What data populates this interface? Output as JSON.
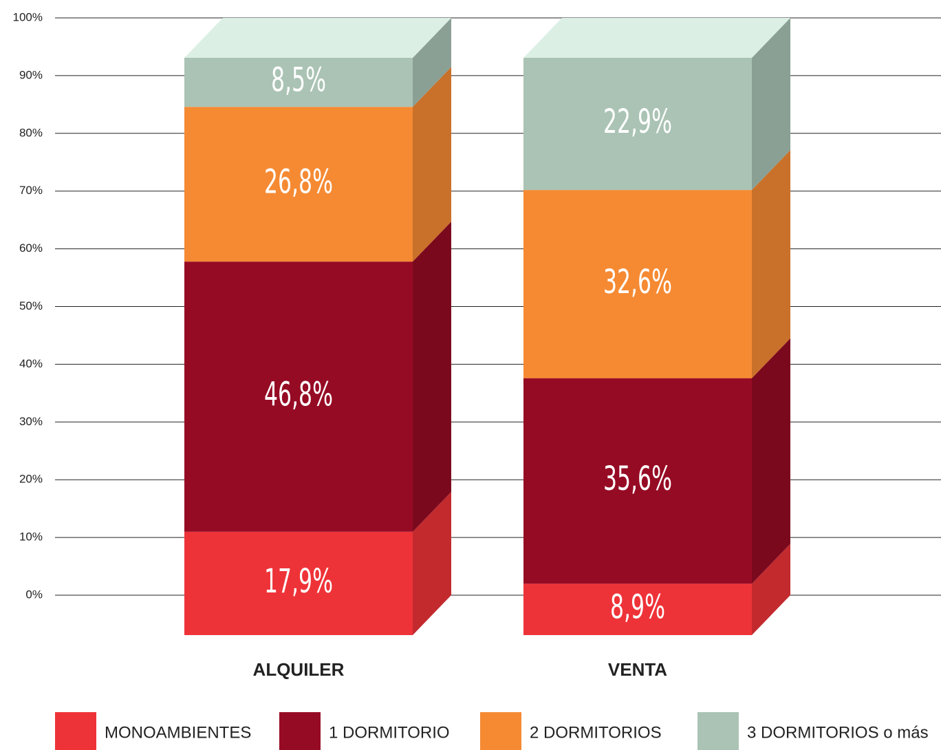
{
  "chart_data": {
    "type": "bar3d_stacked",
    "categories": [
      "ALQUILER",
      "VENTA"
    ],
    "series": [
      {
        "name": "MONOAMBIENTES",
        "color": "#ee3338",
        "values": [
          17.9,
          8.9
        ],
        "value_labels": [
          "17,9%",
          "8,9%"
        ]
      },
      {
        "name": "1 DORMITORIO",
        "color": "#960b24",
        "values": [
          46.8,
          35.6
        ],
        "value_labels": [
          "46,8%",
          "35,6%"
        ]
      },
      {
        "name": "2 DORMITORIOS",
        "color": "#f58a33",
        "values": [
          26.8,
          32.6
        ],
        "value_labels": [
          "26,8%",
          "32,6%"
        ]
      },
      {
        "name": "3 DORMITORIOS o más",
        "color": "#aac3b4",
        "values": [
          8.5,
          22.9
        ],
        "value_labels": [
          "8,5%",
          "22,9%"
        ]
      }
    ],
    "ylim": [
      0,
      100
    ],
    "yticks": [
      {
        "value": 0,
        "label": "0%"
      },
      {
        "value": 10,
        "label": "10%"
      },
      {
        "value": 20,
        "label": "20%"
      },
      {
        "value": 30,
        "label": "30%"
      },
      {
        "value": 40,
        "label": "40%"
      },
      {
        "value": 50,
        "label": "50%"
      },
      {
        "value": 60,
        "label": "60%"
      },
      {
        "value": 70,
        "label": "70%"
      },
      {
        "value": 80,
        "label": "80%"
      },
      {
        "value": 90,
        "label": "90%"
      },
      {
        "value": 100,
        "label": "100%"
      }
    ],
    "grid": true,
    "legend": "bottom"
  }
}
